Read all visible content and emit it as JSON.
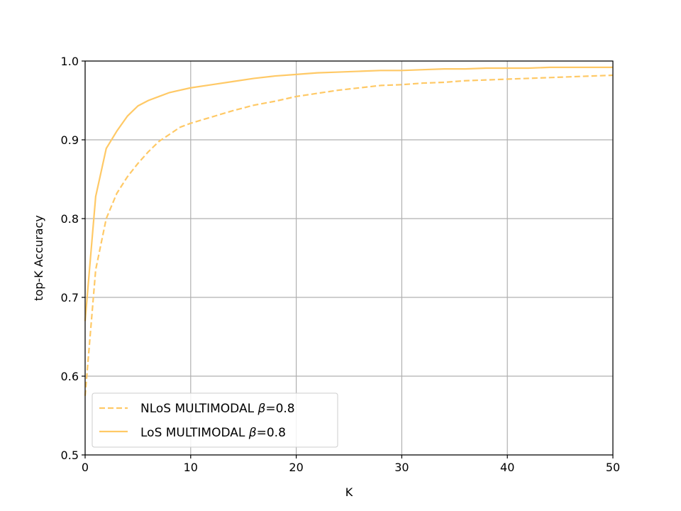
{
  "chart_data": {
    "type": "line",
    "title": "",
    "xlabel": "K",
    "ylabel": "top-K Accuracy",
    "xlim": [
      0,
      50
    ],
    "ylim": [
      0.5,
      1.0
    ],
    "xticks": [
      0,
      10,
      20,
      30,
      40,
      50
    ],
    "yticks": [
      0.5,
      0.6,
      0.7,
      0.8,
      0.9,
      1.0
    ],
    "xtick_labels": [
      "0",
      "10",
      "20",
      "30",
      "40",
      "50"
    ],
    "ytick_labels": [
      "0.5",
      "0.6",
      "0.7",
      "0.8",
      "0.9",
      "1.0"
    ],
    "grid": true,
    "legend_position": "lower-left",
    "series": [
      {
        "name": "NLoS MULTIMODAL",
        "name_beta": "β",
        "name_suffix": "=0.8",
        "style": "dashed",
        "color": "#ffc966",
        "x": [
          0,
          1,
          2,
          3,
          4,
          5,
          6,
          7,
          8,
          9,
          10,
          12,
          14,
          16,
          18,
          20,
          22,
          24,
          26,
          28,
          30,
          32,
          34,
          36,
          38,
          40,
          42,
          44,
          46,
          48,
          50
        ],
        "y": [
          0.575,
          0.735,
          0.8,
          0.832,
          0.853,
          0.87,
          0.885,
          0.898,
          0.907,
          0.916,
          0.921,
          0.929,
          0.937,
          0.944,
          0.949,
          0.955,
          0.959,
          0.963,
          0.966,
          0.969,
          0.97,
          0.972,
          0.973,
          0.975,
          0.976,
          0.977,
          0.978,
          0.979,
          0.98,
          0.981,
          0.982
        ]
      },
      {
        "name": "LoS MULTIMODAL",
        "name_beta": "β",
        "name_suffix": "=0.8",
        "style": "solid",
        "color": "#ffc966",
        "x": [
          0,
          1,
          2,
          3,
          4,
          5,
          6,
          7,
          8,
          9,
          10,
          12,
          14,
          16,
          18,
          20,
          22,
          24,
          26,
          28,
          30,
          32,
          34,
          36,
          38,
          40,
          42,
          44,
          46,
          48,
          50
        ],
        "y": [
          0.67,
          0.828,
          0.889,
          0.911,
          0.93,
          0.943,
          0.95,
          0.955,
          0.96,
          0.963,
          0.966,
          0.97,
          0.974,
          0.978,
          0.981,
          0.983,
          0.985,
          0.986,
          0.987,
          0.988,
          0.988,
          0.989,
          0.99,
          0.99,
          0.991,
          0.991,
          0.991,
          0.992,
          0.992,
          0.992,
          0.992
        ]
      }
    ]
  }
}
